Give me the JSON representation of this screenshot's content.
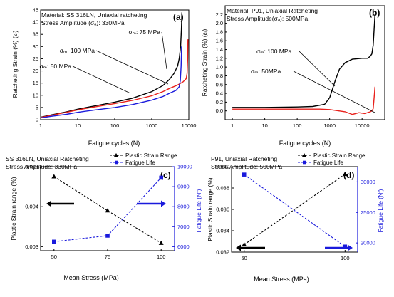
{
  "colors": {
    "black": "#000000",
    "red": "#e8211c",
    "blue": "#1a1adc",
    "axis": "#000000"
  },
  "chart_data": [
    {
      "id": "a",
      "type": "line",
      "panel_label": "(a)",
      "title": "Material: SS 316LN, Uniaxial ratcheting",
      "subtitle": "Stress Amplitude (σₐ): 330MPa",
      "xlabel": "Fatigue cycles (N)",
      "ylabel": "Ratcheting Strain (%) (εᵣ)",
      "xscale": "log",
      "xlim": [
        1,
        10000
      ],
      "ylim": [
        0,
        45
      ],
      "xticks": [
        1,
        10,
        100,
        1000,
        10000
      ],
      "xtick_labels": [
        "1",
        "10",
        "100",
        "1000",
        "10000"
      ],
      "yticks": [
        0,
        5,
        10,
        15,
        20,
        25,
        30,
        35,
        40,
        45
      ],
      "ytick_labels": [
        "0",
        "5",
        "10",
        "15",
        "20",
        "25",
        "30",
        "35",
        "40",
        "45"
      ],
      "series": [
        {
          "name": "σₘ: 75 MPa",
          "color": "black",
          "x": [
            1,
            2,
            5,
            10,
            30,
            100,
            300,
            1000,
            2000,
            3000,
            4000,
            5000,
            5500,
            6000,
            6300,
            6500
          ],
          "y": [
            1,
            2,
            3.2,
            4.3,
            5.7,
            7.2,
            8.8,
            11.5,
            14,
            16.5,
            19,
            22,
            25,
            30,
            37,
            44
          ]
        },
        {
          "name": "σₘ: 100 MPa",
          "color": "red",
          "x": [
            1,
            2,
            5,
            10,
            30,
            100,
            300,
            1000,
            2000,
            3000,
            5000,
            7000,
            8500,
            9000,
            9300,
            9500
          ],
          "y": [
            0.9,
            1.8,
            3,
            4,
            5.3,
            6.6,
            7.9,
            9.8,
            11.5,
            12.8,
            14.2,
            15.5,
            16.8,
            19,
            25,
            33
          ]
        },
        {
          "name": "σₘ: 50 MPa",
          "color": "blue",
          "x": [
            1,
            2,
            5,
            10,
            30,
            100,
            300,
            1000,
            2000,
            3000,
            4500,
            5500,
            5900,
            6200,
            6400
          ],
          "y": [
            0.7,
            1.4,
            2.2,
            3,
            4,
            5,
            6.2,
            8,
            9.5,
            10.8,
            12,
            13.5,
            16,
            22,
            30
          ]
        }
      ],
      "annotations": [
        {
          "text": "σₘ: 75 MPa",
          "series": 0
        },
        {
          "text": "σₘ: 100 MPa",
          "series": 1
        },
        {
          "text": "σₘ: 50 MPa",
          "series": 2
        }
      ]
    },
    {
      "id": "b",
      "type": "line",
      "panel_label": "(b)",
      "title": "Material: P91, Uniaxial Ratcheting",
      "subtitle": "Stress Amplitude(σₐ): 500MPa",
      "xlabel": "Fatigue cycles (N)",
      "ylabel": "Ratcheting Strain (%) (εᵣ)",
      "xscale": "log",
      "xlim": [
        0.6,
        50000
      ],
      "ylim": [
        -0.2,
        2.4
      ],
      "xticks": [
        1,
        10,
        100,
        1000,
        10000
      ],
      "xtick_labels": [
        "1",
        "10",
        "100",
        "1000",
        "10000"
      ],
      "yticks": [
        0,
        0.2,
        0.4,
        0.6,
        0.8,
        1.0,
        1.2,
        1.4,
        1.6,
        1.8,
        2.0,
        2.2
      ],
      "ytick_labels": [
        "0.0",
        "0.2",
        "0.4",
        "0.6",
        "0.8",
        "1.0",
        "1.2",
        "1.4",
        "1.6",
        "1.8",
        "2.0",
        "2.2"
      ],
      "series": [
        {
          "name": "σₘ: 100 MPa",
          "color": "black",
          "x": [
            1,
            10,
            100,
            300,
            700,
            1000,
            1500,
            2000,
            3000,
            5000,
            10000,
            15000,
            18000,
            20000,
            22000,
            25000
          ],
          "y": [
            0.08,
            0.08,
            0.09,
            0.1,
            0.15,
            0.3,
            0.7,
            0.95,
            1.1,
            1.18,
            1.2,
            1.2,
            1.25,
            1.3,
            1.5,
            2.2
          ]
        },
        {
          "name": "σₘ: 50MPa",
          "color": "red",
          "x": [
            1,
            10,
            100,
            500,
            1000,
            3000,
            5000,
            8000,
            12000,
            18000,
            20000,
            22000,
            23500,
            25000
          ],
          "y": [
            0.04,
            0.04,
            0.04,
            0.04,
            0.03,
            -0.02,
            -0.08,
            -0.04,
            -0.06,
            -0.02,
            0.0,
            0.05,
            0.3,
            0.55
          ]
        }
      ],
      "annotations": [
        {
          "text": "σₘ: 100 MPa",
          "series": 0
        },
        {
          "text": "σₘ: 50MPa",
          "series": 1
        }
      ]
    },
    {
      "id": "c",
      "type": "scatter",
      "panel_label": "(c)",
      "title": "SS 316LN, Uniaxial Ratcheting",
      "subtitle": "Stress Amplitude: 330MPa",
      "xlabel": "Mean Stress (MPa)",
      "ylabel": "Plastic Strain range (%)",
      "y2label": "Fatigue Life (Nf)",
      "categories": [
        50,
        75,
        100
      ],
      "xticks": [
        50,
        75,
        100
      ],
      "xtick_labels": [
        "50",
        "75",
        "100"
      ],
      "ylim": [
        0.0029,
        0.005
      ],
      "yticks": [
        0.003,
        0.004,
        0.005
      ],
      "ytick_labels": [
        "0.003",
        "0.004",
        "0.005"
      ],
      "y2lim": [
        5800,
        10000
      ],
      "y2ticks": [
        6000,
        7000,
        8000,
        9000,
        10000
      ],
      "y2tick_labels": [
        "6000",
        "7000",
        "8000",
        "9000",
        "10000"
      ],
      "series": [
        {
          "name": "Plastic Strain Range",
          "color": "black",
          "marker": "triangle",
          "axis": "left",
          "values": [
            0.00475,
            0.0039,
            0.00309
          ]
        },
        {
          "name": "Fatigue Life",
          "color": "blue",
          "marker": "square",
          "axis": "right",
          "values": [
            6250,
            6550,
            9450
          ]
        }
      ],
      "legend": "top-right"
    },
    {
      "id": "d",
      "type": "scatter",
      "panel_label": "(d)",
      "title": "P91, Uniaxial Ratcheting",
      "subtitle": "Stress Amplitude: 500MPa",
      "xlabel": "Mean Stress (MPa)",
      "ylabel": "Plastic Strain range (%)",
      "y2label": "Fatigue Life (Nf)",
      "categories": [
        50,
        100
      ],
      "xticks": [
        50,
        100
      ],
      "xtick_labels": [
        "50",
        "100"
      ],
      "ylim": [
        0.032,
        0.04
      ],
      "yticks": [
        0.032,
        0.034,
        0.036,
        0.038,
        0.04
      ],
      "ytick_labels": [
        "0.032",
        "0.034",
        "0.036",
        "0.038",
        "0.040"
      ],
      "y2lim": [
        18500,
        32500
      ],
      "y2ticks": [
        20000,
        25000,
        30000
      ],
      "y2tick_labels": [
        "20000",
        "25000",
        "30000"
      ],
      "series": [
        {
          "name": "Plastic Strain Range",
          "color": "black",
          "marker": "triangle",
          "axis": "left",
          "values": [
            0.0327,
            0.0393
          ]
        },
        {
          "name": "Fatigue Life",
          "color": "blue",
          "marker": "square",
          "axis": "right",
          "values": [
            31200,
            19400
          ]
        }
      ],
      "legend": "top-right"
    }
  ]
}
